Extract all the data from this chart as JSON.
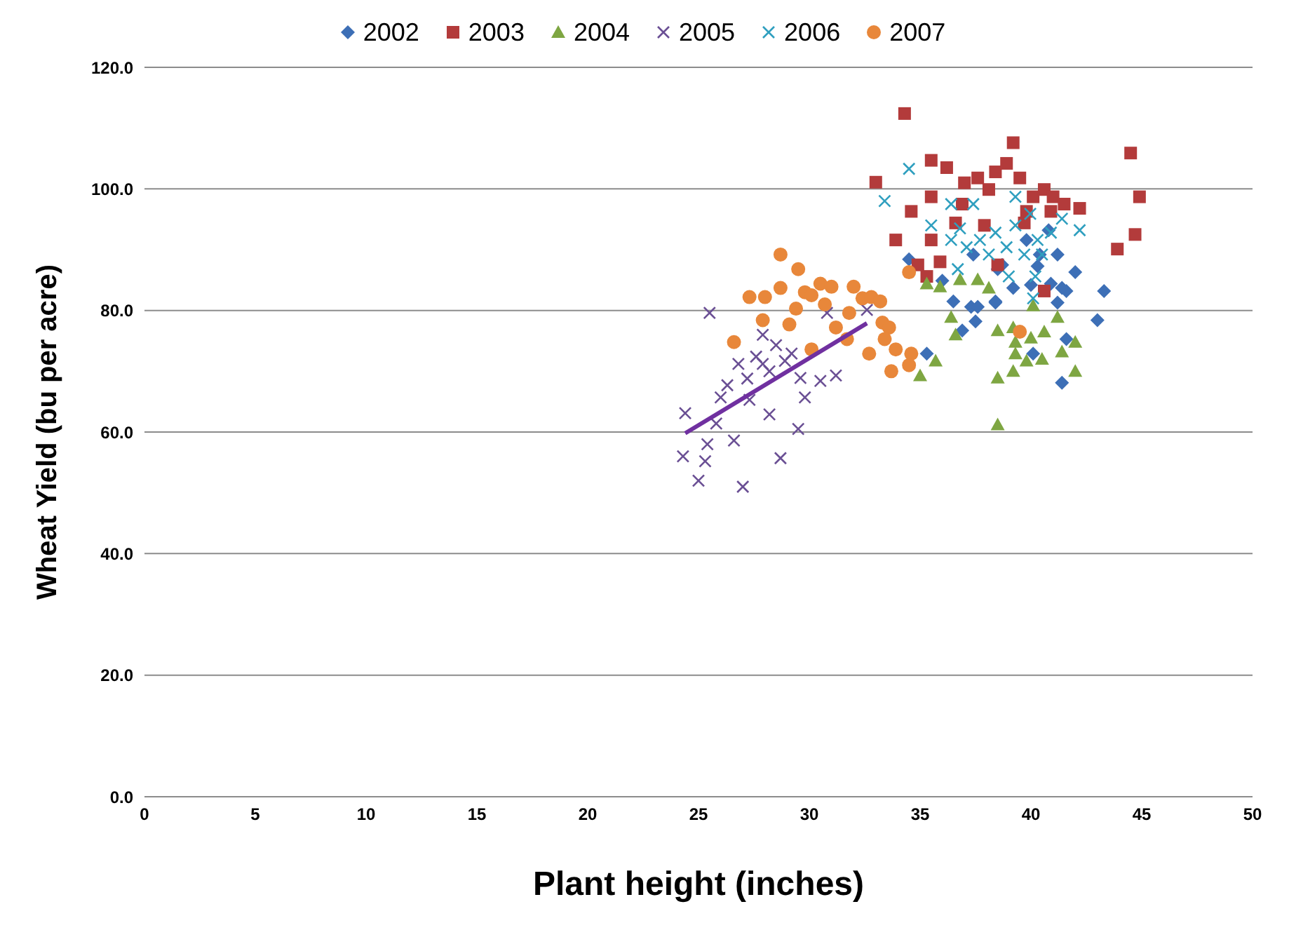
{
  "chart_data": {
    "type": "scatter",
    "xlabel": "Plant height (inches)",
    "ylabel": "Wheat Yield (bu per acre)",
    "xlim": [
      0,
      50
    ],
    "ylim": [
      0,
      120
    ],
    "xticks": [
      0,
      5,
      10,
      15,
      20,
      25,
      30,
      35,
      40,
      45,
      50
    ],
    "yticks": [
      {
        "value": 0,
        "label": "0.0"
      },
      {
        "value": 20,
        "label": "20.0"
      },
      {
        "value": 40,
        "label": "40.0"
      },
      {
        "value": 60,
        "label": "60.0"
      },
      {
        "value": 80,
        "label": "80.0"
      },
      {
        "value": 100,
        "label": "100.0"
      },
      {
        "value": 120,
        "label": "120.0"
      }
    ],
    "grid": "y",
    "legend": "top",
    "series": [
      {
        "name": "2002",
        "color": "#3d6fb6",
        "marker": "diamond",
        "x": [
          34.5,
          36.5,
          37.3,
          37.6,
          38.4,
          36.9,
          37.5,
          39.2,
          40,
          40.9,
          41.6,
          42,
          43.3,
          43,
          41.2,
          41.6,
          41.4,
          40.1,
          35.3,
          36,
          38.5,
          40.3,
          37.4,
          38.7,
          39.8,
          40.4,
          40.8,
          41.2,
          41.4,
          38.4
        ],
        "values": [
          88.4,
          81.5,
          80.6,
          80.6,
          81.5,
          76.7,
          78.2,
          83.7,
          84.2,
          84.4,
          83.2,
          86.3,
          83.2,
          78.4,
          81.3,
          75.3,
          68.1,
          72.9,
          72.9,
          84.9,
          86.8,
          87.3,
          89.2,
          87.5,
          91.6,
          89.2,
          93.2,
          89.2,
          83.7,
          81.3
        ]
      },
      {
        "name": "2003",
        "color": "#b33b3b",
        "marker": "square",
        "x": [
          34.3,
          33,
          35.5,
          36.2,
          37,
          37.6,
          38.1,
          38.4,
          39.2,
          38.9,
          39.5,
          40.1,
          40.6,
          41,
          41.5,
          42.2,
          44.5,
          44.9,
          44.7,
          43.9,
          34.6,
          35.5,
          35.3,
          34.9,
          35.9,
          36.6,
          37.9,
          33.9,
          36.9,
          39.7,
          40.9,
          40.6,
          38.5,
          39.8,
          35.5
        ],
        "values": [
          112.4,
          101.1,
          104.7,
          103.5,
          101,
          101.8,
          99.9,
          102.8,
          107.6,
          104.2,
          101.8,
          98.7,
          99.9,
          98.7,
          97.5,
          96.8,
          105.9,
          98.7,
          92.5,
          90.1,
          96.3,
          91.6,
          85.6,
          87.5,
          88,
          94.4,
          94,
          91.6,
          97.5,
          94.4,
          96.3,
          83.2,
          87.5,
          96.3,
          98.7
        ]
      },
      {
        "name": "2004",
        "color": "#7ea642",
        "marker": "triangle",
        "x": [
          35.3,
          35.9,
          36.8,
          37.6,
          38.1,
          36.4,
          36.6,
          38.5,
          39.2,
          39.3,
          40,
          40.6,
          39.3,
          39.8,
          40.5,
          41.4,
          42,
          42,
          39.2,
          38.5,
          38.5,
          35,
          35.7,
          40.1,
          41.2
        ],
        "values": [
          84.4,
          83.9,
          85.1,
          85.1,
          83.7,
          78.9,
          76,
          76.7,
          77.2,
          74.8,
          75.5,
          76.5,
          72.9,
          71.7,
          72,
          73.2,
          74.8,
          70,
          70,
          68.9,
          61.2,
          69.3,
          71.7,
          80.8,
          78.9
        ]
      },
      {
        "name": "2005",
        "color": "#6a4f94",
        "marker": "cross",
        "x": [
          25.5,
          24.4,
          24.3,
          25,
          25.3,
          25.4,
          25.8,
          26,
          26.6,
          27,
          27.3,
          27.2,
          27.6,
          27.9,
          28.2,
          28.5,
          28.9,
          29.2,
          28.2,
          28.7,
          29.5,
          29.8,
          29.6,
          30.5,
          31.2,
          30.8,
          32.6,
          26.3,
          26.8,
          27.9
        ],
        "values": [
          79.6,
          63.1,
          56,
          52,
          55.2,
          58,
          61.4,
          65.7,
          58.6,
          51,
          65.3,
          68.8,
          72.4,
          71.2,
          70,
          74.3,
          71.7,
          72.9,
          62.9,
          55.7,
          60.5,
          65.7,
          68.9,
          68.4,
          69.3,
          79.6,
          80.1,
          67.7,
          71.2,
          76
        ]
      },
      {
        "name": "2006",
        "color": "#2f9fbf",
        "marker": "cross",
        "x": [
          34.5,
          33.4,
          35.5,
          36.4,
          37.4,
          36.8,
          37.7,
          38.4,
          38.9,
          39.3,
          39.97,
          40.3,
          40.5,
          40.9,
          41.4,
          42.2,
          39.7,
          39,
          37.1,
          38.1,
          40.2,
          36.7,
          40.1,
          36.4,
          39.3
        ],
        "values": [
          103.3,
          98,
          94,
          97.5,
          97.5,
          93.5,
          91.6,
          92.8,
          90.4,
          94,
          95.9,
          91.6,
          89.2,
          92.8,
          95.1,
          93.2,
          89.2,
          85.6,
          90.4,
          89.2,
          85.6,
          86.8,
          82,
          91.6,
          98.7
        ]
      },
      {
        "name": "2007",
        "color": "#e8873a",
        "marker": "circle",
        "x": [
          26.6,
          27.3,
          28,
          28.7,
          28.7,
          27.9,
          29.4,
          29.8,
          30.1,
          30.5,
          31,
          30.7,
          31.2,
          31.8,
          32,
          32.4,
          32.8,
          33.2,
          33.3,
          33.6,
          33.4,
          33.9,
          33.7,
          34.6,
          34.5,
          34.5,
          32.7,
          30.1,
          29.1,
          39.5,
          29.5,
          31.7
        ],
        "values": [
          74.8,
          82.2,
          82.2,
          89.2,
          83.7,
          78.4,
          80.3,
          83,
          82.5,
          84.4,
          83.9,
          81,
          77.2,
          79.6,
          83.9,
          82,
          82.2,
          81.5,
          78,
          77.2,
          75.3,
          73.6,
          70,
          72.9,
          71,
          86.3,
          72.9,
          73.6,
          77.7,
          76.5,
          86.8,
          75.3
        ]
      },
      {
        "type": "line",
        "color": "#7030a0",
        "marker": "none",
        "x": [
          24.4,
          32.6
        ],
        "values": [
          59.8,
          77.9
        ]
      }
    ]
  }
}
